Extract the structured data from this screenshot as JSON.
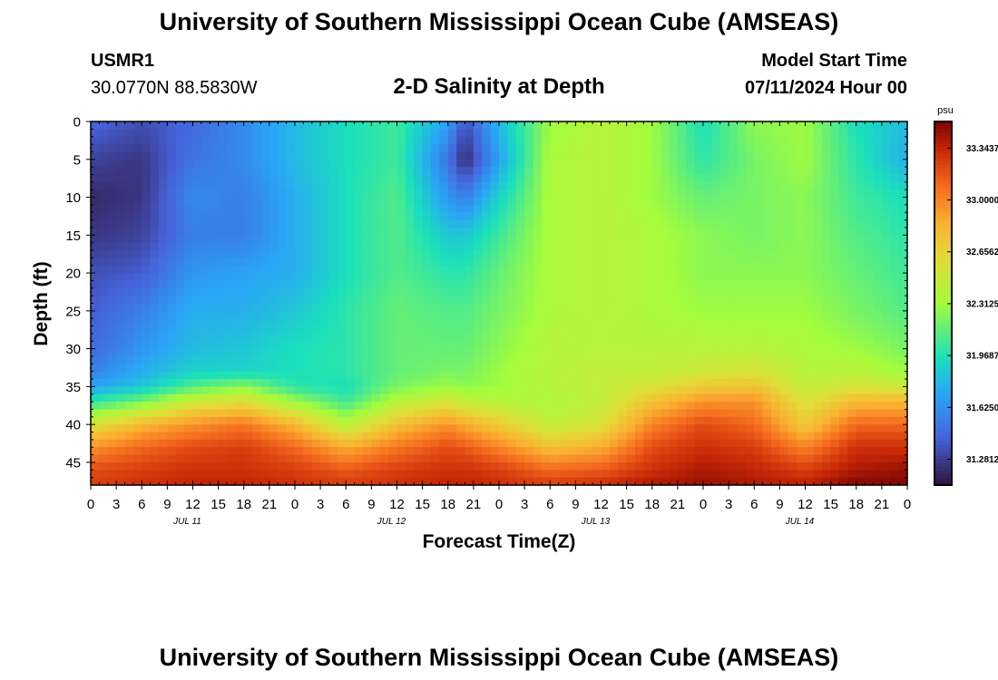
{
  "page": {
    "main_title": "University of Southern Mississippi Ocean Cube (AMSEAS)",
    "station_id": "USMR1",
    "station_coords": "30.0770N  88.5830W",
    "model_start_label": "Model Start Time",
    "model_start_value": "07/11/2024 Hour 00",
    "footer_title": "University of Southern Mississippi Ocean Cube (AMSEAS)"
  },
  "chart_data": {
    "type": "heatmap",
    "title": "2-D Salinity at Depth",
    "xlabel": "Forecast Time(Z)",
    "ylabel": "Depth (ft)",
    "y_ticks": [
      "0",
      "5",
      "10",
      "15",
      "20",
      "25",
      "30",
      "35",
      "40",
      "45"
    ],
    "y_tick_values": [
      0,
      5,
      10,
      15,
      20,
      25,
      30,
      35,
      40,
      45
    ],
    "ylim": [
      0,
      48
    ],
    "xlim_hours": [
      0,
      96
    ],
    "x_ticks": [
      "0",
      "3",
      "6",
      "9",
      "12",
      "15",
      "18",
      "21",
      "0",
      "3",
      "6",
      "9",
      "12",
      "15",
      "18",
      "21",
      "0",
      "3",
      "6",
      "9",
      "12",
      "15",
      "18",
      "21",
      "0",
      "3",
      "6",
      "9",
      "12",
      "15",
      "18",
      "21",
      "0"
    ],
    "day_labels": [
      "JUL 11",
      "JUL 12",
      "JUL 13",
      "JUL 14"
    ],
    "colorbar": {
      "unit": "psu",
      "vmin": 31.11,
      "vmax": 33.52,
      "tick_values": [
        33.3437,
        33.0,
        32.6562,
        32.3125,
        31.9687,
        31.625,
        31.2812
      ],
      "tick_labels": [
        "33.3437",
        "33.0000",
        "32.6562",
        "32.3125",
        "31.9687",
        "31.6250",
        "31.2812"
      ]
    },
    "depths_ft": [
      0,
      5,
      10,
      15,
      20,
      25,
      30,
      33,
      35,
      37,
      40,
      43,
      46,
      48
    ],
    "times_hours": [
      0,
      6,
      12,
      18,
      24,
      30,
      36,
      42,
      44,
      48,
      54,
      60,
      66,
      72,
      78,
      84,
      90,
      96
    ],
    "salinity": [
      [
        31.45,
        31.35,
        31.45,
        31.6,
        31.8,
        31.95,
        32.05,
        31.7,
        31.35,
        31.8,
        32.3,
        32.4,
        32.3,
        31.95,
        32.25,
        32.3,
        31.95,
        31.8
      ],
      [
        31.3,
        31.25,
        31.5,
        31.6,
        31.8,
        31.95,
        32.05,
        31.5,
        31.2,
        31.7,
        32.35,
        32.4,
        32.3,
        32.0,
        32.2,
        32.3,
        32.0,
        31.75
      ],
      [
        31.2,
        31.25,
        31.6,
        31.55,
        31.75,
        31.95,
        32.1,
        31.65,
        31.55,
        31.9,
        32.35,
        32.4,
        32.3,
        32.15,
        32.2,
        32.25,
        32.05,
        31.95
      ],
      [
        31.25,
        31.3,
        31.55,
        31.55,
        31.75,
        31.95,
        32.1,
        31.85,
        31.85,
        32.05,
        32.35,
        32.4,
        32.35,
        32.25,
        32.2,
        32.25,
        32.1,
        32.0
      ],
      [
        31.35,
        31.4,
        31.65,
        31.7,
        31.75,
        31.95,
        32.1,
        32.0,
        32.0,
        32.15,
        32.35,
        32.4,
        32.35,
        32.25,
        32.25,
        32.25,
        32.15,
        32.05
      ],
      [
        31.4,
        31.55,
        31.75,
        31.75,
        31.85,
        32.0,
        32.15,
        32.1,
        32.1,
        32.2,
        32.35,
        32.4,
        32.35,
        32.3,
        32.3,
        32.3,
        32.2,
        32.1
      ],
      [
        31.45,
        31.65,
        31.8,
        31.85,
        31.95,
        32.0,
        32.15,
        32.15,
        32.15,
        32.25,
        32.4,
        32.4,
        32.4,
        32.4,
        32.4,
        32.35,
        32.3,
        32.2
      ],
      [
        31.55,
        31.75,
        31.9,
        31.9,
        31.95,
        32.0,
        32.15,
        32.2,
        32.2,
        32.3,
        32.4,
        32.45,
        32.45,
        32.5,
        32.55,
        32.4,
        32.4,
        32.3
      ],
      [
        31.7,
        31.85,
        32.1,
        32.25,
        32.0,
        31.95,
        32.2,
        32.3,
        32.25,
        32.3,
        32.4,
        32.45,
        32.55,
        32.7,
        32.75,
        32.45,
        32.55,
        32.5
      ],
      [
        32.0,
        32.2,
        32.5,
        32.6,
        32.3,
        32.05,
        32.4,
        32.55,
        32.45,
        32.4,
        32.35,
        32.45,
        32.75,
        32.95,
        32.95,
        32.55,
        32.8,
        32.8
      ],
      [
        32.55,
        32.8,
        32.95,
        33.05,
        32.8,
        32.4,
        32.75,
        32.95,
        32.85,
        32.7,
        32.45,
        32.55,
        33.0,
        33.2,
        33.1,
        32.7,
        33.1,
        33.1
      ],
      [
        32.95,
        33.1,
        33.2,
        33.25,
        33.1,
        32.85,
        33.05,
        33.2,
        33.15,
        33.0,
        32.75,
        32.85,
        33.2,
        33.3,
        33.25,
        33.0,
        33.3,
        33.3
      ],
      [
        33.2,
        33.25,
        33.3,
        33.3,
        33.25,
        33.15,
        33.25,
        33.3,
        33.3,
        33.25,
        33.1,
        33.15,
        33.3,
        33.4,
        33.35,
        33.25,
        33.4,
        33.45
      ],
      [
        33.25,
        33.3,
        33.35,
        33.35,
        33.3,
        33.25,
        33.3,
        33.35,
        33.35,
        33.3,
        33.25,
        33.3,
        33.4,
        33.45,
        33.4,
        33.35,
        33.5,
        33.5
      ]
    ]
  }
}
